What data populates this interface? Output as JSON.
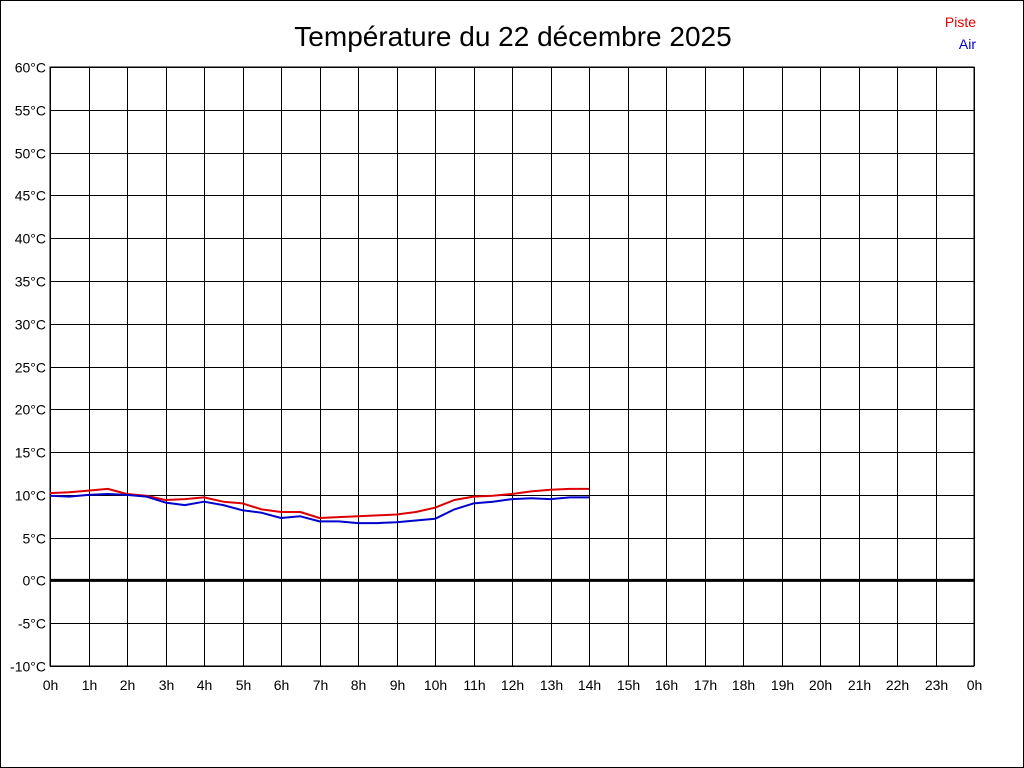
{
  "chart_data": {
    "type": "line",
    "title": "Température du 22 décembre 2025",
    "x_unit": "h",
    "y_unit": "°C",
    "ylim": [
      -10,
      60
    ],
    "ystep": 5,
    "x_tick_labels": [
      "0h",
      "1h",
      "2h",
      "3h",
      "4h",
      "5h",
      "6h",
      "7h",
      "8h",
      "9h",
      "10h",
      "11h",
      "12h",
      "13h",
      "14h",
      "15h",
      "16h",
      "17h",
      "18h",
      "19h",
      "20h",
      "21h",
      "22h",
      "23h",
      "0h"
    ],
    "xlim": [
      0,
      24
    ],
    "grid": true,
    "zero_line": true,
    "legend_position": "top-right",
    "series": [
      {
        "name": "Piste",
        "color": "#dd0000",
        "x": [
          0,
          0.5,
          1,
          1.5,
          2,
          2.5,
          3,
          3.5,
          4,
          4.5,
          5,
          5.5,
          6,
          6.5,
          7,
          7.5,
          8,
          8.5,
          9,
          9.5,
          10,
          10.5,
          11,
          11.5,
          12,
          12.5,
          13,
          13.5,
          14
        ],
        "values": [
          10.2,
          10.3,
          10.5,
          10.7,
          10.1,
          9.9,
          9.4,
          9.5,
          9.7,
          9.2,
          9.0,
          8.3,
          8.0,
          8.0,
          7.3,
          7.4,
          7.5,
          7.6,
          7.7,
          8.0,
          8.5,
          9.4,
          9.8,
          9.9,
          10.1,
          10.4,
          10.6,
          10.7,
          10.7
        ]
      },
      {
        "name": "Air",
        "color": "#0000cc",
        "x": [
          0,
          0.5,
          1,
          1.5,
          2,
          2.5,
          3,
          3.5,
          4,
          4.5,
          5,
          5.5,
          6,
          6.5,
          7,
          7.5,
          8,
          8.5,
          9,
          9.5,
          10,
          10.5,
          11,
          11.5,
          12,
          12.5,
          13,
          13.5,
          14
        ],
        "values": [
          9.9,
          9.8,
          10.0,
          10.1,
          10.0,
          9.8,
          9.1,
          8.8,
          9.2,
          8.8,
          8.2,
          7.9,
          7.3,
          7.5,
          6.9,
          6.9,
          6.7,
          6.7,
          6.8,
          7.0,
          7.2,
          8.3,
          9.0,
          9.2,
          9.5,
          9.6,
          9.5,
          9.7,
          9.7
        ]
      }
    ]
  }
}
